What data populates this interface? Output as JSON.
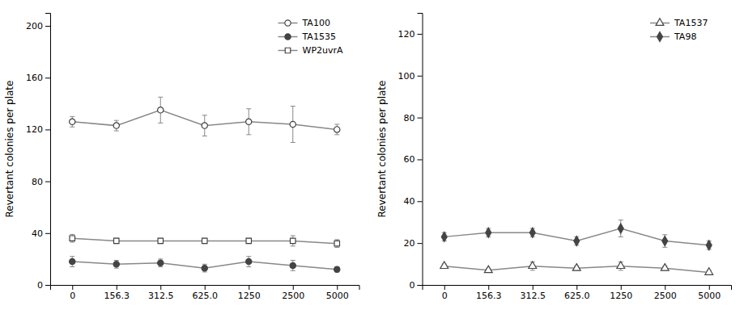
{
  "chart_data": [
    {
      "type": "line",
      "categories": [
        "0",
        "156.3",
        "312.5",
        "625.0",
        "1250",
        "2500",
        "5000"
      ],
      "y_label": "Revertant colonies per plate",
      "ylim": [
        0,
        210
      ],
      "yticks": [
        0,
        40,
        80,
        120,
        160,
        200
      ],
      "grid": false,
      "legend": "upper right",
      "color": "#888888",
      "series": [
        {
          "name": "TA100",
          "marker": "circle-open",
          "values": [
            126,
            123,
            135,
            123,
            126,
            124,
            120
          ],
          "errors": [
            4,
            4,
            10,
            8,
            10,
            14,
            4
          ]
        },
        {
          "name": "TA1535",
          "marker": "circle",
          "values": [
            18,
            16,
            17,
            13,
            18,
            15,
            12
          ],
          "errors": [
            4,
            3,
            3,
            3,
            4,
            4,
            2
          ]
        },
        {
          "name": "WP2uvrA",
          "marker": "square-open",
          "values": [
            36,
            34,
            34,
            34,
            34,
            34,
            32
          ],
          "errors": [
            3,
            2,
            2,
            2,
            2,
            4,
            3
          ]
        }
      ]
    },
    {
      "type": "line",
      "categories": [
        "0",
        "156.3",
        "312.5",
        "625.0",
        "1250",
        "2500",
        "5000"
      ],
      "y_label": "Revertant colonies per plate",
      "ylim": [
        0,
        130
      ],
      "yticks": [
        0,
        20,
        40,
        60,
        80,
        100,
        120
      ],
      "grid": false,
      "legend": "upper right",
      "color": "#888888",
      "series": [
        {
          "name": "TA1537",
          "marker": "triangle-open",
          "values": [
            9,
            7,
            9,
            8,
            9,
            8,
            6
          ],
          "errors": [
            1,
            1,
            2,
            1,
            2,
            1,
            1
          ]
        },
        {
          "name": "TA98",
          "marker": "diamond",
          "values": [
            23,
            25,
            25,
            21,
            27,
            21,
            19
          ],
          "errors": [
            2,
            2,
            2,
            2,
            4,
            3,
            2
          ]
        }
      ]
    }
  ]
}
